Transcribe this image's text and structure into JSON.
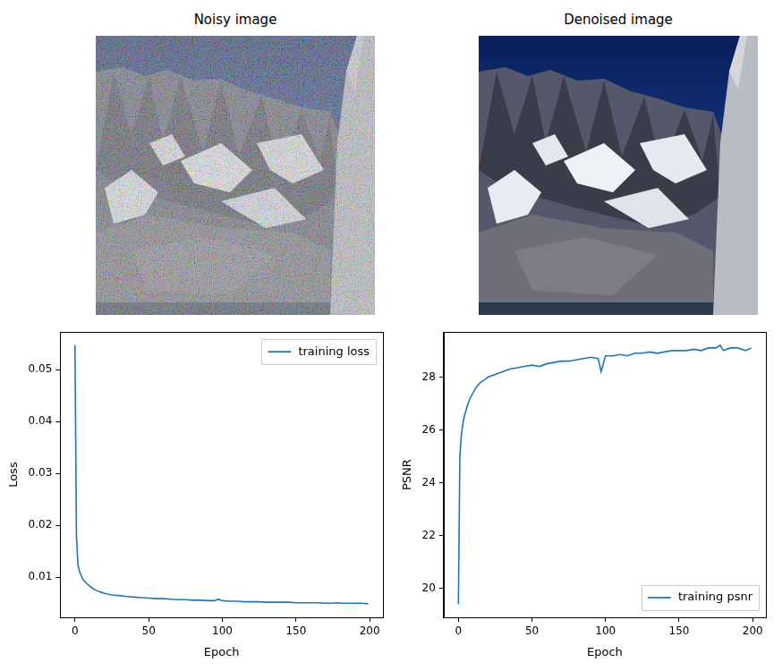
{
  "images": [
    {
      "title": "Noisy image"
    },
    {
      "title": "Denoised image"
    }
  ],
  "chart_data": [
    {
      "type": "line",
      "xlabel": "Epoch",
      "ylabel": "Loss",
      "x": [
        0,
        1,
        2,
        3,
        4,
        5,
        6,
        8,
        10,
        12,
        15,
        18,
        20,
        25,
        30,
        35,
        40,
        45,
        50,
        55,
        60,
        65,
        70,
        75,
        80,
        85,
        90,
        95,
        97,
        100,
        105,
        110,
        115,
        120,
        125,
        130,
        135,
        140,
        145,
        150,
        155,
        160,
        165,
        170,
        175,
        178,
        180,
        185,
        190,
        195,
        199
      ],
      "series": [
        {
          "name": "training loss",
          "color": "#1f77b4",
          "values": [
            0.0547,
            0.018,
            0.0125,
            0.0112,
            0.0105,
            0.0098,
            0.0094,
            0.0088,
            0.0083,
            0.0079,
            0.0074,
            0.0071,
            0.0069,
            0.0066,
            0.0065,
            0.0063,
            0.0062,
            0.0061,
            0.006,
            0.0059,
            0.0059,
            0.0058,
            0.0057,
            0.0057,
            0.0056,
            0.0056,
            0.0055,
            0.0055,
            0.0058,
            0.0055,
            0.0054,
            0.0054,
            0.0053,
            0.0053,
            0.0053,
            0.0052,
            0.0052,
            0.0052,
            0.0052,
            0.0051,
            0.0051,
            0.0051,
            0.0051,
            0.005,
            0.005,
            0.0051,
            0.005,
            0.005,
            0.005,
            0.005,
            0.0049
          ]
        }
      ],
      "xlim": [
        -10,
        209
      ],
      "xticks": [
        0,
        50,
        100,
        150,
        200
      ],
      "ylim": [
        0.0023,
        0.0572
      ],
      "yticks": [
        0.01,
        0.02,
        0.03,
        0.04,
        0.05
      ],
      "grid": false,
      "legend": "upper right"
    },
    {
      "type": "line",
      "xlabel": "Epoch",
      "ylabel": "PSNR",
      "x": [
        0,
        1,
        2,
        3,
        4,
        5,
        6,
        8,
        10,
        12,
        15,
        18,
        20,
        25,
        30,
        35,
        40,
        45,
        50,
        55,
        60,
        65,
        70,
        75,
        80,
        85,
        90,
        95,
        97,
        100,
        105,
        110,
        115,
        120,
        125,
        130,
        135,
        140,
        145,
        150,
        155,
        160,
        165,
        170,
        175,
        178,
        180,
        185,
        190,
        195,
        199
      ],
      "series": [
        {
          "name": "training psnr",
          "color": "#1f77b4",
          "values": [
            19.4,
            25.0,
            25.8,
            26.2,
            26.5,
            26.7,
            26.9,
            27.2,
            27.4,
            27.6,
            27.8,
            27.9,
            28.0,
            28.1,
            28.2,
            28.3,
            28.35,
            28.4,
            28.45,
            28.4,
            28.5,
            28.55,
            28.6,
            28.6,
            28.65,
            28.7,
            28.75,
            28.7,
            28.2,
            28.8,
            28.8,
            28.85,
            28.8,
            28.9,
            28.9,
            28.95,
            28.9,
            28.95,
            29.0,
            29.0,
            29.0,
            29.05,
            29.0,
            29.1,
            29.1,
            29.2,
            29.0,
            29.1,
            29.1,
            29.0,
            29.1
          ]
        }
      ],
      "xlim": [
        -10,
        209
      ],
      "xticks": [
        0,
        50,
        100,
        150,
        200
      ],
      "ylim": [
        18.9,
        29.7
      ],
      "yticks": [
        20,
        22,
        24,
        26,
        28
      ],
      "grid": false,
      "legend": "lower right"
    }
  ]
}
